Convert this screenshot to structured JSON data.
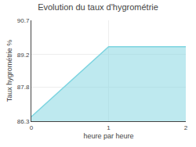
{
  "chart_data": {
    "type": "area",
    "title": "Evolution du taux d'hygrométrie",
    "xlabel": "heure par heure",
    "ylabel": "Taux hygrométrie %",
    "x": [
      0,
      1,
      2
    ],
    "values": [
      86.5,
      89.55,
      89.55
    ],
    "color": "#7dd4e0",
    "xlim": [
      0,
      2
    ],
    "xticks": [
      0,
      1,
      2
    ],
    "ylim": [
      86.3,
      90.7
    ],
    "yticks": [
      86.3,
      87.8,
      89.2,
      90.7
    ],
    "grid": true
  }
}
